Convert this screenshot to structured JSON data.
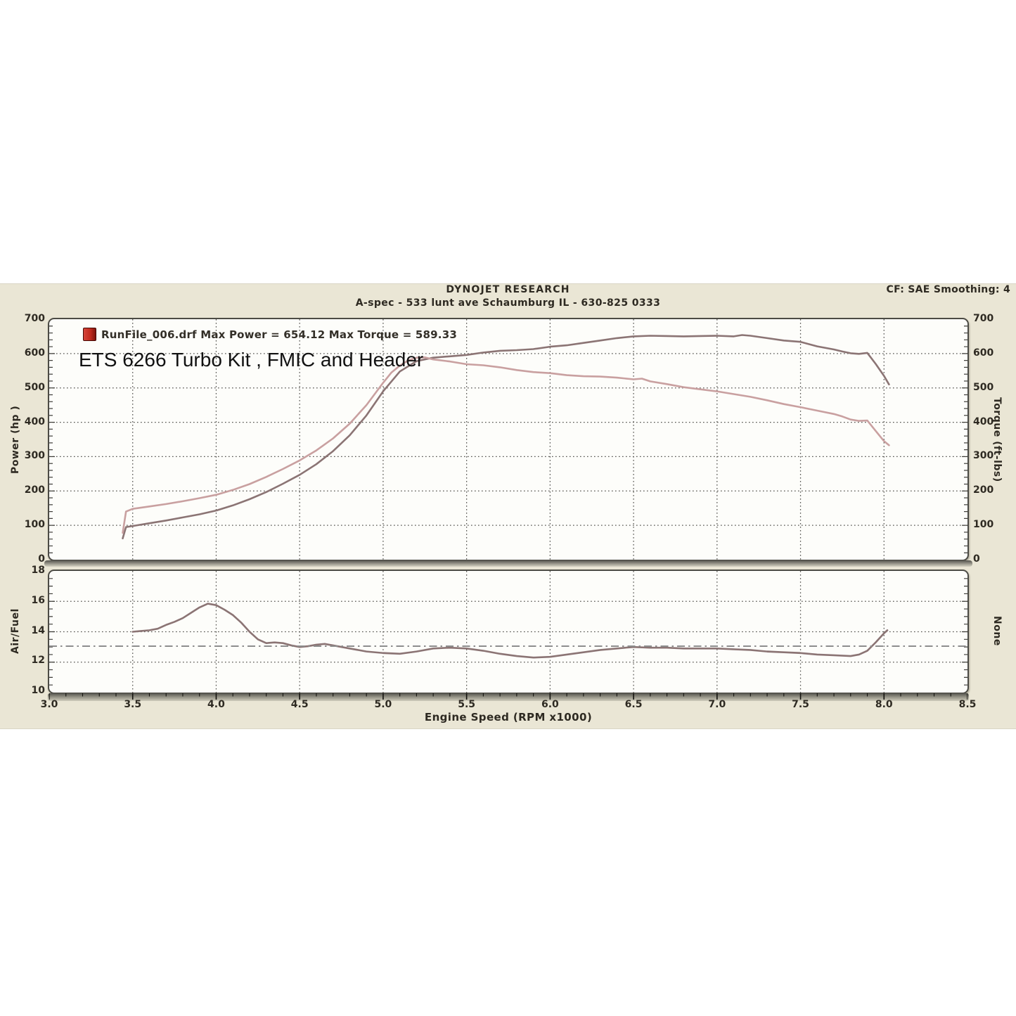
{
  "header": {
    "title": "DYNOJET RESEARCH",
    "subtitle": "A-spec - 533 lunt ave Schaumburg IL - 630-825 0333",
    "correction_info": "CF: SAE  Smoothing: 4"
  },
  "legend": {
    "run_file": "RunFile_006.drf",
    "text": "RunFile_006.drf Max Power = 654.12 Max Torque = 589.33",
    "max_power": "654.12",
    "max_torque": "589.33",
    "icon_color": "#c3281c"
  },
  "caption": "ETS 6266 Turbo Kit , FMIC and Header",
  "x_axis_title": "Engine Speed (RPM x1000)",
  "colors": {
    "panel_bg": "#eae6d5",
    "plot_bg": "#fdfdfa",
    "frame_border": "#4c4b45",
    "grid": "#53524e",
    "text": "#2e2a22",
    "power_curve": "#8b7474",
    "torque_curve": "#c9a0a0",
    "afr_curve": "#8b7474",
    "marker_line": "#8d8d8d"
  },
  "chart_data": [
    {
      "type": "line",
      "title": "Power and Torque vs Engine Speed",
      "xlabel": "Engine Speed (RPM x1000)",
      "left_axis": "Power (hp )",
      "right_axis": "Torque (ft-lbs)",
      "x_range": [
        3.0,
        8.5
      ],
      "y_range": [
        0,
        700
      ],
      "x_ticks": [
        3.0,
        3.5,
        4.0,
        4.5,
        5.0,
        5.5,
        6.0,
        6.5,
        7.0,
        7.5,
        8.0,
        8.5
      ],
      "y_ticks": [
        0,
        100,
        200,
        300,
        400,
        500,
        600,
        700
      ],
      "x_grid": [
        3.5,
        4.0,
        4.5,
        5.0,
        5.5,
        6.0,
        6.5,
        7.0,
        7.5,
        8.0
      ],
      "y_grid": [
        100,
        200,
        300,
        400,
        500,
        600
      ],
      "y_minor": 20,
      "y_major": 100,
      "grid_on": true,
      "series": [
        {
          "name": "Power (hp)",
          "color": "#8b7474",
          "max_value": 654.12,
          "points": [
            [
              3.44,
              62
            ],
            [
              3.46,
              95
            ],
            [
              3.5,
              98
            ],
            [
              3.6,
              106
            ],
            [
              3.7,
              114
            ],
            [
              3.8,
              123
            ],
            [
              3.9,
              132
            ],
            [
              4.0,
              143
            ],
            [
              4.1,
              158
            ],
            [
              4.2,
              176
            ],
            [
              4.3,
              197
            ],
            [
              4.4,
              221
            ],
            [
              4.5,
              247
            ],
            [
              4.6,
              278
            ],
            [
              4.7,
              316
            ],
            [
              4.8,
              362
            ],
            [
              4.9,
              420
            ],
            [
              5.0,
              490
            ],
            [
              5.1,
              548
            ],
            [
              5.2,
              578
            ],
            [
              5.3,
              588
            ],
            [
              5.4,
              592
            ],
            [
              5.5,
              596
            ],
            [
              5.6,
              603
            ],
            [
              5.7,
              608
            ],
            [
              5.8,
              610
            ],
            [
              5.9,
              613
            ],
            [
              6.0,
              620
            ],
            [
              6.1,
              624
            ],
            [
              6.2,
              631
            ],
            [
              6.3,
              638
            ],
            [
              6.4,
              645
            ],
            [
              6.5,
              650
            ],
            [
              6.6,
              652
            ],
            [
              6.7,
              651
            ],
            [
              6.8,
              650
            ],
            [
              6.9,
              651
            ],
            [
              7.0,
              652
            ],
            [
              7.1,
              650
            ],
            [
              7.15,
              654
            ],
            [
              7.2,
              652
            ],
            [
              7.3,
              645
            ],
            [
              7.4,
              638
            ],
            [
              7.5,
              634
            ],
            [
              7.6,
              621
            ],
            [
              7.7,
              612
            ],
            [
              7.75,
              606
            ],
            [
              7.8,
              601
            ],
            [
              7.85,
              599
            ],
            [
              7.9,
              602
            ],
            [
              7.95,
              570
            ],
            [
              8.0,
              535
            ],
            [
              8.03,
              510
            ]
          ]
        },
        {
          "name": "Torque (ft-lbs)",
          "color": "#c9a0a0",
          "max_value": 589.33,
          "points": [
            [
              3.44,
              78
            ],
            [
              3.46,
              140
            ],
            [
              3.5,
              148
            ],
            [
              3.6,
              155
            ],
            [
              3.7,
              162
            ],
            [
              3.8,
              170
            ],
            [
              3.9,
              179
            ],
            [
              4.0,
              189
            ],
            [
              4.1,
              203
            ],
            [
              4.2,
              220
            ],
            [
              4.3,
              241
            ],
            [
              4.4,
              264
            ],
            [
              4.5,
              289
            ],
            [
              4.6,
              318
            ],
            [
              4.7,
              353
            ],
            [
              4.8,
              396
            ],
            [
              4.9,
              450
            ],
            [
              5.0,
              515
            ],
            [
              5.05,
              545
            ],
            [
              5.1,
              565
            ],
            [
              5.15,
              580
            ],
            [
              5.2,
              588
            ],
            [
              5.25,
              589
            ],
            [
              5.3,
              583
            ],
            [
              5.4,
              577
            ],
            [
              5.5,
              569
            ],
            [
              5.6,
              566
            ],
            [
              5.7,
              560
            ],
            [
              5.8,
              552
            ],
            [
              5.9,
              546
            ],
            [
              6.0,
              543
            ],
            [
              6.1,
              537
            ],
            [
              6.2,
              534
            ],
            [
              6.3,
              533
            ],
            [
              6.4,
              530
            ],
            [
              6.5,
              525
            ],
            [
              6.55,
              527
            ],
            [
              6.6,
              519
            ],
            [
              6.7,
              511
            ],
            [
              6.8,
              502
            ],
            [
              6.9,
              496
            ],
            [
              7.0,
              490
            ],
            [
              7.1,
              482
            ],
            [
              7.2,
              474
            ],
            [
              7.3,
              464
            ],
            [
              7.4,
              453
            ],
            [
              7.5,
              444
            ],
            [
              7.6,
              434
            ],
            [
              7.7,
              424
            ],
            [
              7.75,
              417
            ],
            [
              7.8,
              408
            ],
            [
              7.85,
              404
            ],
            [
              7.9,
              405
            ],
            [
              7.95,
              375
            ],
            [
              8.0,
              345
            ],
            [
              8.03,
              333
            ]
          ]
        }
      ]
    },
    {
      "type": "line",
      "title": "Air/Fuel vs Engine Speed",
      "xlabel": "Engine Speed (RPM x1000)",
      "left_axis": "Air/Fuel",
      "right_axis": "None",
      "x_range": [
        3.0,
        8.5
      ],
      "y_range": [
        10,
        18
      ],
      "x_ticks": [
        3.0,
        3.5,
        4.0,
        4.5,
        5.0,
        5.5,
        6.0,
        6.5,
        7.0,
        7.5,
        8.0,
        8.5
      ],
      "y_ticks": [
        18,
        16,
        14,
        12,
        10
      ],
      "x_grid": [
        3.5,
        4.0,
        4.5,
        5.0,
        5.5,
        6.0,
        6.5,
        7.0,
        7.5,
        8.0
      ],
      "y_grid": [
        12,
        14,
        16
      ],
      "y_minor": 0.5,
      "y_major": 2,
      "grid_on": true,
      "marker_line": {
        "value": 13.05,
        "color": "#8d8d8d",
        "style": "dash-dot"
      },
      "series": [
        {
          "name": "Air/Fuel",
          "color": "#8b7474",
          "points": [
            [
              3.5,
              14.0
            ],
            [
              3.55,
              14.05
            ],
            [
              3.6,
              14.1
            ],
            [
              3.65,
              14.2
            ],
            [
              3.7,
              14.45
            ],
            [
              3.75,
              14.65
            ],
            [
              3.8,
              14.9
            ],
            [
              3.85,
              15.25
            ],
            [
              3.9,
              15.6
            ],
            [
              3.95,
              15.85
            ],
            [
              4.0,
              15.75
            ],
            [
              4.05,
              15.45
            ],
            [
              4.1,
              15.1
            ],
            [
              4.15,
              14.6
            ],
            [
              4.2,
              14.0
            ],
            [
              4.25,
              13.5
            ],
            [
              4.3,
              13.25
            ],
            [
              4.35,
              13.3
            ],
            [
              4.4,
              13.25
            ],
            [
              4.45,
              13.1
            ],
            [
              4.5,
              13.0
            ],
            [
              4.55,
              13.05
            ],
            [
              4.6,
              13.15
            ],
            [
              4.65,
              13.2
            ],
            [
              4.7,
              13.1
            ],
            [
              4.8,
              12.9
            ],
            [
              4.9,
              12.7
            ],
            [
              5.0,
              12.6
            ],
            [
              5.1,
              12.55
            ],
            [
              5.2,
              12.7
            ],
            [
              5.3,
              12.9
            ],
            [
              5.4,
              12.95
            ],
            [
              5.5,
              12.9
            ],
            [
              5.6,
              12.75
            ],
            [
              5.7,
              12.55
            ],
            [
              5.8,
              12.4
            ],
            [
              5.9,
              12.3
            ],
            [
              6.0,
              12.35
            ],
            [
              6.1,
              12.5
            ],
            [
              6.2,
              12.65
            ],
            [
              6.3,
              12.8
            ],
            [
              6.4,
              12.9
            ],
            [
              6.5,
              13.0
            ],
            [
              6.6,
              12.95
            ],
            [
              6.7,
              12.95
            ],
            [
              6.8,
              12.9
            ],
            [
              6.9,
              12.9
            ],
            [
              7.0,
              12.9
            ],
            [
              7.1,
              12.85
            ],
            [
              7.2,
              12.8
            ],
            [
              7.3,
              12.7
            ],
            [
              7.4,
              12.65
            ],
            [
              7.5,
              12.6
            ],
            [
              7.6,
              12.5
            ],
            [
              7.7,
              12.45
            ],
            [
              7.8,
              12.4
            ],
            [
              7.85,
              12.5
            ],
            [
              7.9,
              12.75
            ],
            [
              7.95,
              13.3
            ],
            [
              8.0,
              13.9
            ],
            [
              8.02,
              14.1
            ]
          ]
        }
      ]
    }
  ]
}
